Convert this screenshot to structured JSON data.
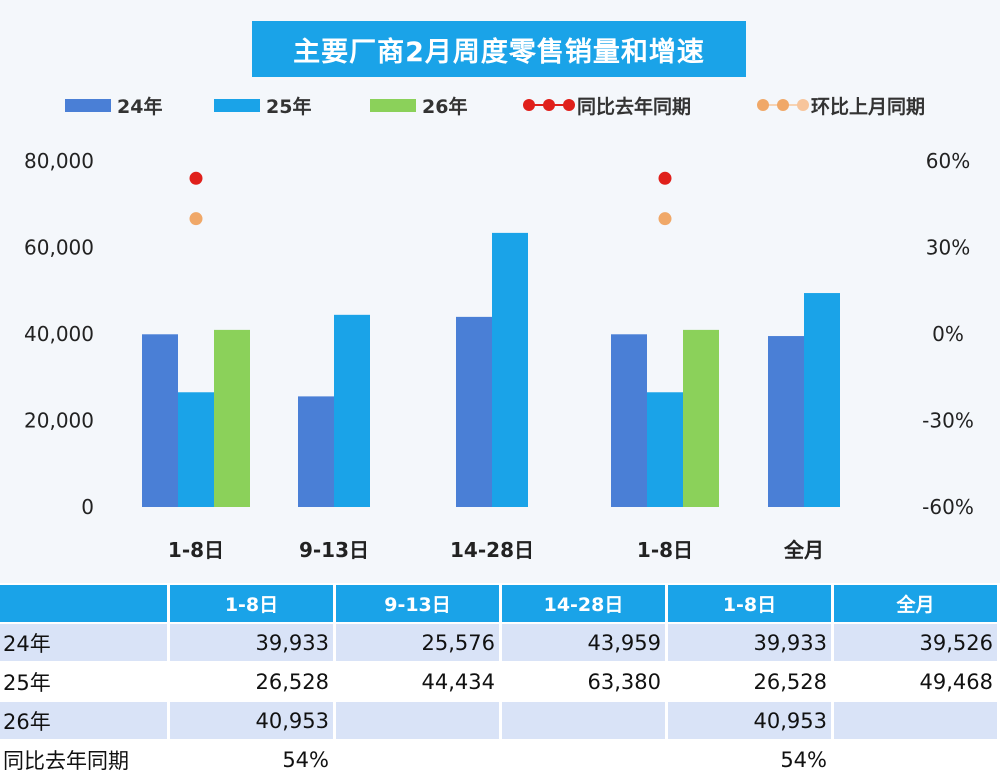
{
  "title": "主要厂商2月周度零售销量和增速",
  "colors": {
    "series_24": "#4a7fd6",
    "series_25": "#1aa3e8",
    "series_26": "#8bd15a",
    "yoy": "#e0201b",
    "mom": "#f0a868",
    "header_bg": "#1aa3e8",
    "band_bg": "#d9e3f7"
  },
  "legend": {
    "items": [
      {
        "label": "24年",
        "kind": "bar",
        "color": "#4a7fd6"
      },
      {
        "label": "25年",
        "kind": "bar",
        "color": "#1aa3e8"
      },
      {
        "label": "26年",
        "kind": "bar",
        "color": "#8bd15a"
      },
      {
        "label": "同比去年同期",
        "kind": "dots",
        "color": "#e0201b"
      },
      {
        "label": "环比上月同期",
        "kind": "dots",
        "color": "#f0a868"
      }
    ]
  },
  "chart_data": {
    "type": "bar",
    "title": "主要厂商2月周度零售销量和增速",
    "categories": [
      "1-8日",
      "9-13日",
      "14-28日",
      "1-8日",
      "全月"
    ],
    "series": [
      {
        "name": "24年",
        "values": [
          39933,
          25576,
          43959,
          39933,
          39526
        ]
      },
      {
        "name": "25年",
        "values": [
          26528,
          44434,
          63380,
          26528,
          49468
        ]
      },
      {
        "name": "26年",
        "values": [
          40953,
          null,
          null,
          40953,
          null
        ]
      }
    ],
    "line_series": [
      {
        "name": "同比去年同期",
        "axis": "right",
        "values": [
          0.54,
          null,
          null,
          0.54,
          null
        ]
      },
      {
        "name": "环比上月同期",
        "axis": "right",
        "values": [
          0.4,
          null,
          null,
          0.4,
          null
        ]
      }
    ],
    "y_left": {
      "range": [
        0,
        80000
      ],
      "ticks": [
        "0",
        "20,000",
        "40,000",
        "60,000",
        "80,000"
      ]
    },
    "y_right": {
      "range": [
        -0.6,
        0.6
      ],
      "ticks": [
        "-60%",
        "-30%",
        "0%",
        "30%",
        "60%"
      ]
    },
    "legend_position": "top",
    "grid": false
  },
  "table": {
    "headers": [
      "",
      "1-8日",
      "9-13日",
      "14-28日",
      "1-8日",
      "全月"
    ],
    "rows": [
      {
        "label": "24年",
        "cells": [
          "39,933",
          "25,576",
          "43,959",
          "39,933",
          "39,526"
        ]
      },
      {
        "label": "25年",
        "cells": [
          "26,528",
          "44,434",
          "63,380",
          "26,528",
          "49,468"
        ]
      },
      {
        "label": "26年",
        "cells": [
          "40,953",
          "",
          "",
          "40,953",
          ""
        ]
      },
      {
        "label": "同比去年同期",
        "cells": [
          "54%",
          "",
          "",
          "54%",
          ""
        ]
      }
    ]
  }
}
